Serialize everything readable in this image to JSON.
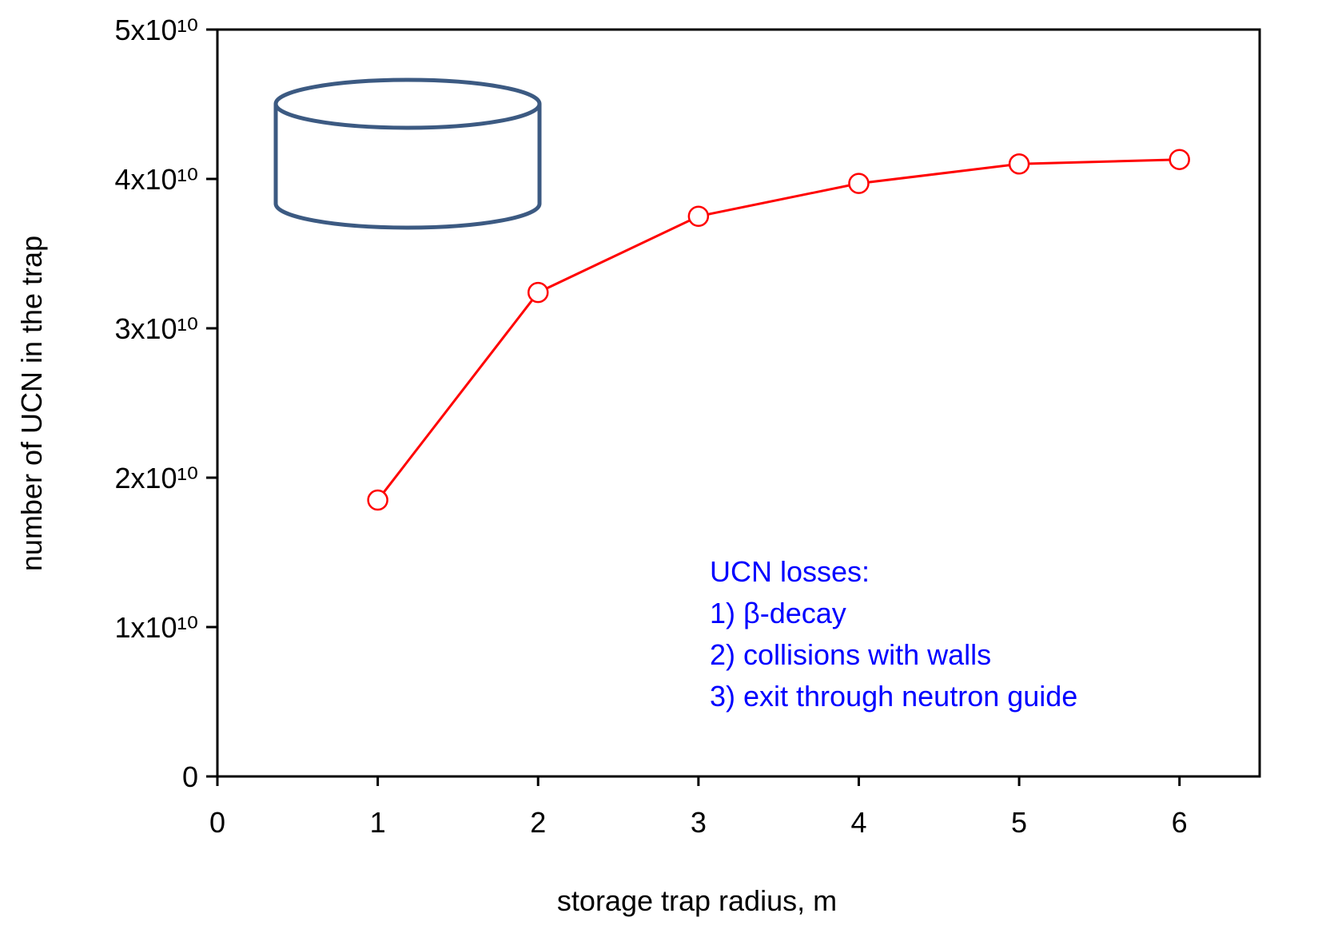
{
  "chart_data": {
    "type": "line",
    "x_label": "storage trap radius, m",
    "y_label": "number of UCN in the trap",
    "x": [
      1,
      2,
      3,
      4,
      5,
      6
    ],
    "series": [
      {
        "color": "#ff0000",
        "values": [
          18500000000,
          32400000000,
          37500000000,
          39700000000,
          41000000000,
          41300000000
        ]
      }
    ],
    "xlim": [
      0,
      6.5
    ],
    "xticks": [
      0,
      1,
      2,
      3,
      4,
      5,
      6
    ],
    "ylim": [
      0,
      50000000000
    ],
    "yticks": [
      0,
      {
        "value": 10000000000,
        "label": "1x10¹⁰"
      },
      {
        "value": 20000000000,
        "label": "2x10¹⁰"
      },
      {
        "value": 30000000000,
        "label": "3x10¹⁰"
      },
      {
        "value": 40000000000,
        "label": "4x10¹⁰"
      },
      {
        "value": 50000000000,
        "label": "5x10¹⁰"
      }
    ],
    "annotations": [
      "UCN losses:",
      "1) β-decay",
      "2) collisions with walls",
      "3) exit through neutron guide"
    ],
    "annotation_color": "#0000ff"
  }
}
